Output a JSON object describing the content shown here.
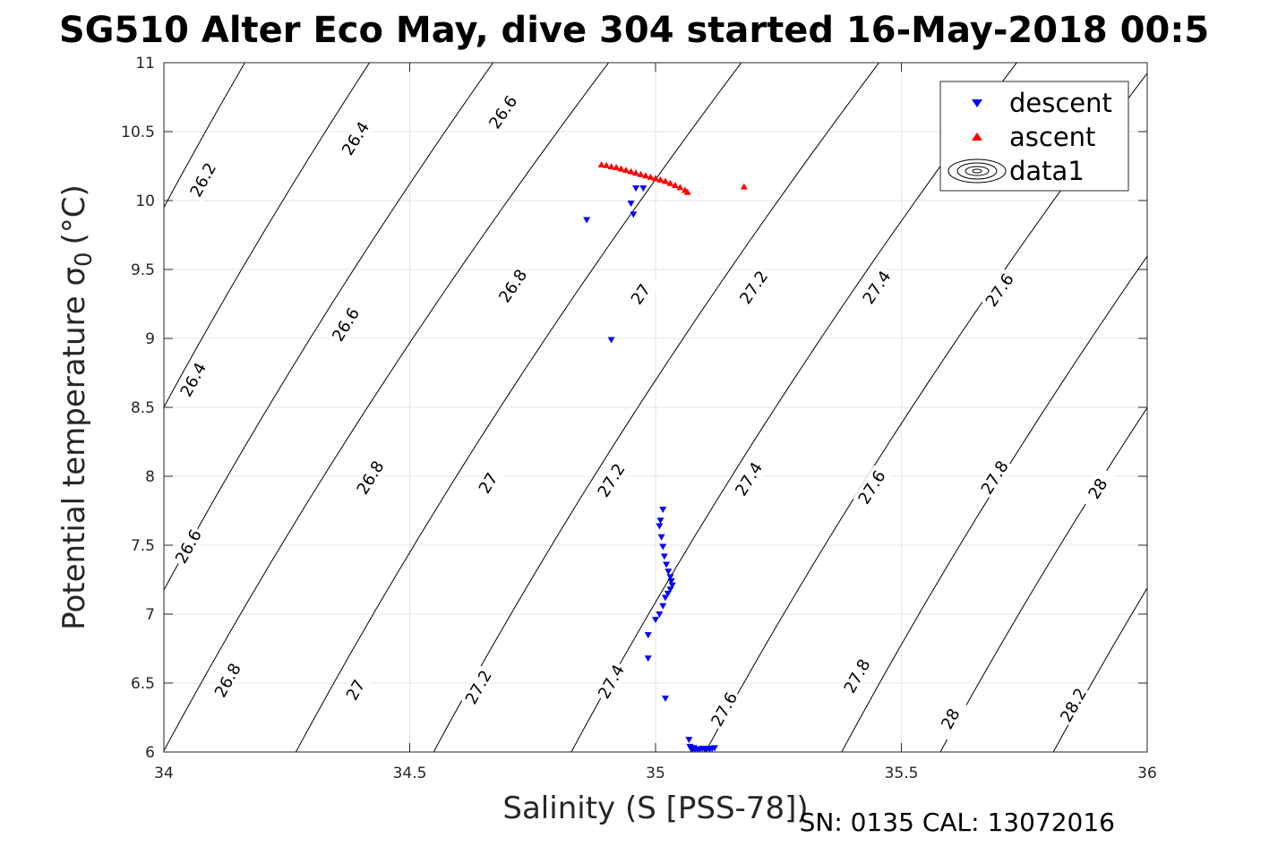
{
  "chart_data": {
    "type": "scatter",
    "title": "SG510 Alter Eco May, dive 304 started 16-May-2018 00:5",
    "xlabel": "Salinity (S [PSS-78])",
    "ylabel": "Potential temperature σ",
    "ylabel_sub": "0",
    "ylabel_unit": "(°C)",
    "footer": "SN: 0135  CAL: 13072016",
    "xlim": [
      34,
      36
    ],
    "ylim": [
      6,
      11
    ],
    "x_ticks": [
      "34",
      "34.5",
      "35",
      "35.5",
      "36"
    ],
    "y_ticks": [
      "6",
      "6.5",
      "7",
      "7.5",
      "8",
      "8.5",
      "9",
      "9.5",
      "10",
      "10.5",
      "11"
    ],
    "grid": true,
    "legend_position": "top-right",
    "series": [
      {
        "name": "descent",
        "marker": "triangle-down",
        "color": "#0000ff",
        "points": [
          [
            34.86,
            9.86
          ],
          [
            34.95,
            9.98
          ],
          [
            34.955,
            9.9
          ],
          [
            34.96,
            10.09
          ],
          [
            34.975,
            10.09
          ],
          [
            34.91,
            8.99
          ],
          [
            35.015,
            7.76
          ],
          [
            35.01,
            7.68
          ],
          [
            35.008,
            7.64
          ],
          [
            35.012,
            7.56
          ],
          [
            35.015,
            7.49
          ],
          [
            35.018,
            7.42
          ],
          [
            35.022,
            7.36
          ],
          [
            35.026,
            7.31
          ],
          [
            35.03,
            7.27
          ],
          [
            35.032,
            7.24
          ],
          [
            35.034,
            7.21
          ],
          [
            35.03,
            7.18
          ],
          [
            35.025,
            7.15
          ],
          [
            35.02,
            7.12
          ],
          [
            35.015,
            7.06
          ],
          [
            35.008,
            7.0
          ],
          [
            35.0,
            6.96
          ],
          [
            34.985,
            6.85
          ],
          [
            34.985,
            6.68
          ],
          [
            35.02,
            6.39
          ],
          [
            35.068,
            6.09
          ],
          [
            35.07,
            6.04
          ],
          [
            35.072,
            6.025
          ],
          [
            35.075,
            6.02
          ],
          [
            35.08,
            6.02
          ],
          [
            35.085,
            6.02
          ],
          [
            35.09,
            6.02
          ],
          [
            35.095,
            6.025
          ],
          [
            35.1,
            6.02
          ],
          [
            35.105,
            6.025
          ],
          [
            35.11,
            6.02
          ],
          [
            35.115,
            6.025
          ],
          [
            35.12,
            6.03
          ],
          [
            35.073,
            6.03
          ],
          [
            35.078,
            6.03
          ]
        ]
      },
      {
        "name": "ascent",
        "marker": "triangle-up",
        "color": "#ff0000",
        "points": [
          [
            34.89,
            10.26
          ],
          [
            34.9,
            10.255
          ],
          [
            34.91,
            10.245
          ],
          [
            34.92,
            10.24
          ],
          [
            34.93,
            10.23
          ],
          [
            34.94,
            10.22
          ],
          [
            34.95,
            10.21
          ],
          [
            34.96,
            10.2
          ],
          [
            34.97,
            10.19
          ],
          [
            34.98,
            10.18
          ],
          [
            34.99,
            10.17
          ],
          [
            35.0,
            10.16
          ],
          [
            35.01,
            10.15
          ],
          [
            35.02,
            10.14
          ],
          [
            35.03,
            10.125
          ],
          [
            35.04,
            10.11
          ],
          [
            35.05,
            10.095
          ],
          [
            35.06,
            10.075
          ],
          [
            35.065,
            10.06
          ],
          [
            35.18,
            10.1
          ]
        ]
      },
      {
        "name": "data1",
        "type": "contour",
        "color": "#000000",
        "levels": [
          {
            "level": 26.2,
            "anchor": [
              34.069,
              10.4
            ],
            "labels": [
              [
                34.08,
                10.15
              ]
            ]
          },
          {
            "level": 26.4,
            "anchor": [
              34.046,
              8.8
            ],
            "labels": [
              [
                34.06,
                8.7
              ],
              [
                34.39,
                10.45
              ]
            ]
          },
          {
            "level": 26.6,
            "anchor": [
              34.05,
              7.5
            ],
            "labels": [
              [
                34.05,
                7.49
              ],
              [
                34.37,
                9.1
              ],
              [
                34.69,
                10.64
              ]
            ]
          },
          {
            "level": 26.8,
            "anchor": [
              34.06,
              6.4
            ],
            "labels": [
              [
                34.13,
                6.52
              ],
              [
                34.42,
                7.99
              ],
              [
                34.71,
                9.38
              ]
            ]
          },
          {
            "level": 27.0,
            "anchor": [
              34.33,
              6.4
            ],
            "labels": [
              [
                34.39,
                6.45
              ],
              [
                34.66,
                7.95
              ],
              [
                34.97,
                9.32
              ]
            ]
          },
          {
            "level": 27.2,
            "anchor": [
              34.61,
              6.4
            ],
            "labels": [
              [
                34.64,
                6.47
              ],
              [
                34.91,
                7.97
              ],
              [
                35.2,
                9.37
              ]
            ]
          },
          {
            "level": 27.4,
            "anchor": [
              34.89,
              6.4
            ],
            "labels": [
              [
                34.91,
                6.51
              ],
              [
                35.19,
                7.98
              ],
              [
                35.45,
                9.37
              ]
            ]
          },
          {
            "level": 27.6,
            "anchor": [
              35.14,
              6.25
            ],
            "labels": [
              [
                35.14,
                6.31
              ],
              [
                35.44,
                7.92
              ],
              [
                35.7,
                9.35
              ]
            ]
          },
          {
            "level": 27.8,
            "anchor": [
              35.44,
              6.4
            ],
            "labels": [
              [
                35.41,
                6.55
              ],
              [
                35.69,
                7.99
              ]
            ]
          },
          {
            "level": 28.0,
            "anchor": [
              35.61,
              6.2
            ],
            "labels": [
              [
                35.6,
                6.24
              ],
              [
                35.9,
                7.91
              ]
            ]
          },
          {
            "level": 28.2,
            "anchor": [
              35.84,
              6.2
            ],
            "labels": [
              [
                35.85,
                6.34
              ]
            ]
          }
        ]
      }
    ]
  }
}
